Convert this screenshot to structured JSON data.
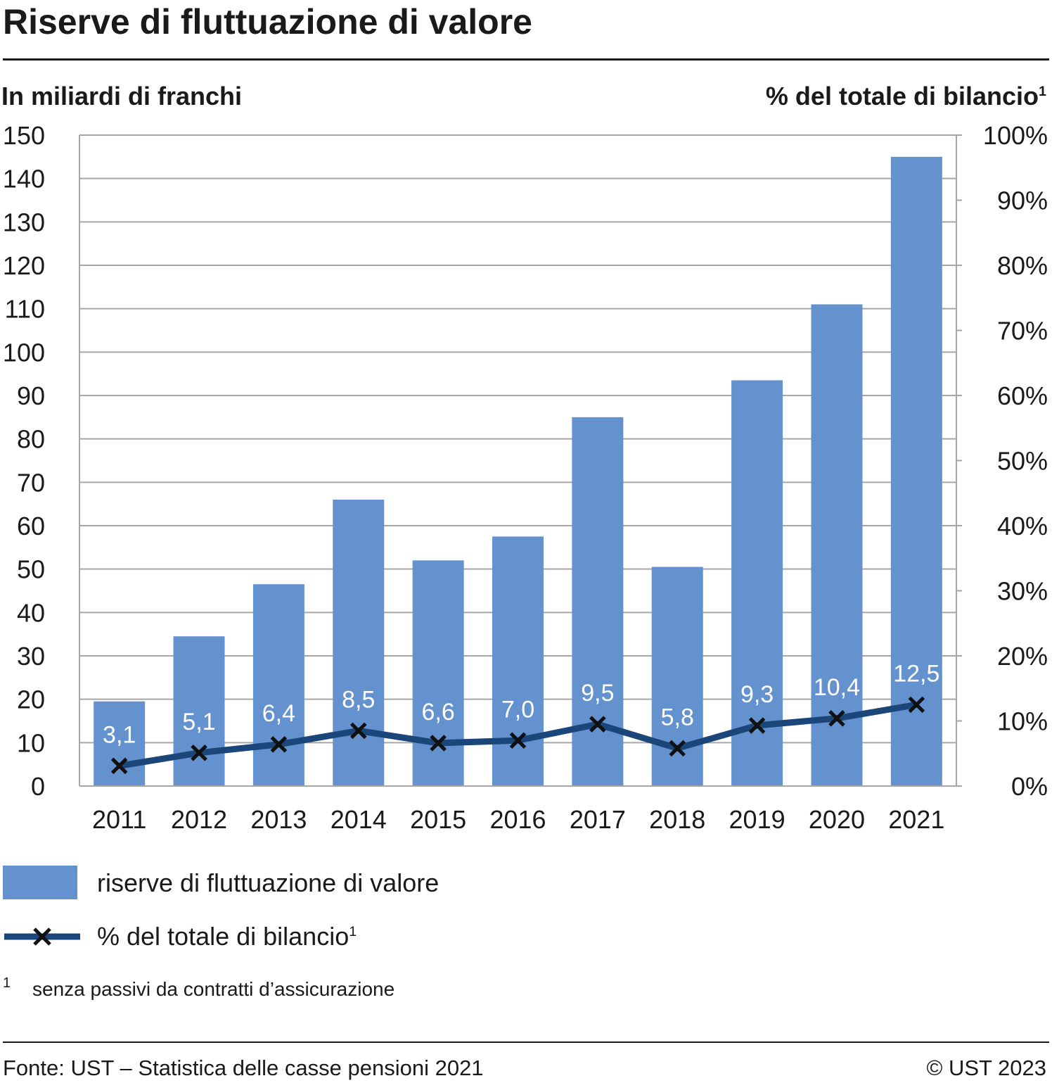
{
  "title": "Riserve di fluttuazione di valore",
  "unit_left": "In miliardi di franchi",
  "unit_right": "% del totale di bilancio",
  "unit_right_sup": "1",
  "legend": {
    "bar_label": "riserve di fluttuazione di valore",
    "line_label": "% del totale di bilancio",
    "line_sup": "1"
  },
  "footnote": {
    "mark": "1",
    "text": "senza passivi da contratti d’assicurazione"
  },
  "source": "Fonte: UST – Statistica delle casse pensioni 2021",
  "copyright": "© UST 2023",
  "colors": {
    "bar": "#6492cf",
    "line": "#1b4679",
    "marker": "#111111",
    "grid": "#a6a6a6",
    "label": "#ffffff"
  },
  "chart_data": {
    "type": "bar",
    "categories": [
      "2011",
      "2012",
      "2013",
      "2014",
      "2015",
      "2016",
      "2017",
      "2018",
      "2019",
      "2020",
      "2021"
    ],
    "series": [
      {
        "name": "riserve di fluttuazione di valore",
        "type": "bar",
        "axis": "left",
        "values": [
          19.5,
          34.5,
          46.5,
          66,
          52,
          57.5,
          85,
          50.5,
          93.5,
          111,
          145
        ]
      },
      {
        "name": "% del totale di bilancio",
        "type": "line",
        "axis": "right",
        "values": [
          3.1,
          5.1,
          6.4,
          8.5,
          6.6,
          7.0,
          9.5,
          5.8,
          9.3,
          10.4,
          12.5
        ],
        "labels": [
          "3,1",
          "5,1",
          "6,4",
          "8,5",
          "6,6",
          "7,0",
          "9,5",
          "5,8",
          "9,3",
          "10,4",
          "12,5"
        ]
      }
    ],
    "ylim_left": [
      0,
      150
    ],
    "yticks_left": [
      "0",
      "10",
      "20",
      "30",
      "40",
      "50",
      "60",
      "70",
      "80",
      "90",
      "100",
      "110",
      "120",
      "130",
      "140",
      "150"
    ],
    "ylim_right": [
      0,
      100
    ],
    "yticks_right": [
      "0%",
      "10%",
      "20%",
      "30%",
      "40%",
      "50%",
      "60%",
      "70%",
      "80%",
      "90%",
      "100%"
    ],
    "ylabel_left": "In miliardi di franchi",
    "ylabel_right": "% del totale di bilancio",
    "grid": true,
    "legend_position": "bottom"
  }
}
